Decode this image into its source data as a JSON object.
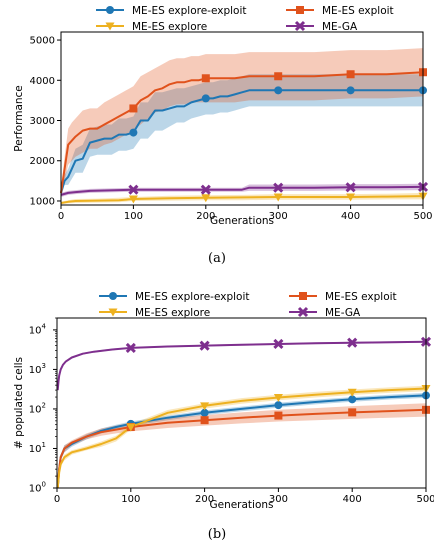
{
  "colors": {
    "explore_exploit": "#1f77b4",
    "exploit": "#e0521c",
    "explore": "#edb120",
    "ga": "#7e2f8e"
  },
  "chart_data": [
    {
      "type": "line",
      "caption": "(a)",
      "xlabel": "Generations",
      "ylabel": "Performance",
      "xlim": [
        0,
        500
      ],
      "ylim": [
        900,
        5200
      ],
      "yscale": "linear",
      "xticks": [
        "0",
        "100",
        "200",
        "300",
        "400",
        "500"
      ],
      "yticks": [
        "1000",
        "2000",
        "3000",
        "4000",
        "5000"
      ],
      "ytick_values": [
        1000,
        2000,
        3000,
        4000,
        5000
      ],
      "grid": false,
      "legend": "top, 2 columns",
      "series": [
        {
          "name": "ME-ES explore-exploit",
          "color_key": "explore_exploit",
          "marker": "circle",
          "x": [
            0,
            5,
            10,
            20,
            30,
            40,
            50,
            60,
            70,
            80,
            90,
            100,
            110,
            120,
            130,
            140,
            150,
            160,
            170,
            180,
            190,
            200,
            210,
            220,
            230,
            240,
            250,
            260,
            270,
            300,
            350,
            400,
            450,
            500
          ],
          "y": [
            1200,
            1500,
            1600,
            2000,
            2050,
            2450,
            2500,
            2550,
            2550,
            2650,
            2650,
            2700,
            3000,
            3000,
            3250,
            3250,
            3300,
            3350,
            3350,
            3450,
            3500,
            3550,
            3550,
            3600,
            3600,
            3650,
            3700,
            3750,
            3750,
            3750,
            3750,
            3750,
            3750,
            3750
          ],
          "lower": [
            1100,
            1400,
            1400,
            1700,
            1700,
            2100,
            2150,
            2150,
            2150,
            2250,
            2250,
            2300,
            2550,
            2550,
            2750,
            2750,
            2850,
            2950,
            2950,
            3050,
            3100,
            3150,
            3150,
            3200,
            3200,
            3250,
            3300,
            3350,
            3350,
            3350,
            3350,
            3350,
            3350,
            3350
          ],
          "upper": [
            1300,
            1650,
            1800,
            2300,
            2400,
            2800,
            2850,
            2900,
            2900,
            3050,
            3050,
            3100,
            3450,
            3450,
            3700,
            3700,
            3750,
            3800,
            3800,
            3850,
            3900,
            3950,
            3950,
            4000,
            4000,
            4050,
            4100,
            4150,
            4150,
            4150,
            4150,
            4150,
            4150,
            4150
          ],
          "markers_x": [
            100,
            200,
            300,
            400,
            500
          ]
        },
        {
          "name": "ME-ES exploit",
          "color_key": "exploit",
          "marker": "square",
          "x": [
            0,
            5,
            10,
            15,
            20,
            30,
            40,
            50,
            60,
            70,
            80,
            90,
            100,
            110,
            120,
            130,
            140,
            150,
            160,
            170,
            180,
            190,
            200,
            220,
            240,
            260,
            280,
            300,
            350,
            400,
            450,
            500
          ],
          "y": [
            1200,
            1800,
            2400,
            2500,
            2600,
            2750,
            2800,
            2800,
            2900,
            3000,
            3100,
            3200,
            3300,
            3500,
            3600,
            3750,
            3800,
            3900,
            3950,
            3950,
            4000,
            4000,
            4050,
            4050,
            4050,
            4100,
            4100,
            4100,
            4100,
            4150,
            4150,
            4200
          ],
          "lower": [
            1100,
            1500,
            1900,
            2000,
            2100,
            2200,
            2300,
            2300,
            2400,
            2450,
            2550,
            2650,
            2750,
            2900,
            3050,
            3200,
            3250,
            3350,
            3400,
            3400,
            3450,
            3450,
            3450,
            3450,
            3450,
            3500,
            3500,
            3500,
            3500,
            3550,
            3550,
            3600
          ],
          "upper": [
            1300,
            2100,
            2800,
            2950,
            3050,
            3250,
            3300,
            3300,
            3450,
            3550,
            3650,
            3750,
            3850,
            4100,
            4200,
            4300,
            4400,
            4500,
            4550,
            4550,
            4600,
            4600,
            4650,
            4650,
            4650,
            4700,
            4700,
            4700,
            4700,
            4750,
            4750,
            4800
          ],
          "markers_x": [
            100,
            200,
            300,
            400,
            500
          ]
        },
        {
          "name": "ME-ES explore",
          "color_key": "explore",
          "marker": "triangle-down",
          "x": [
            0,
            10,
            20,
            50,
            80,
            100,
            150,
            200,
            250,
            300,
            350,
            400,
            450,
            500
          ],
          "y": [
            950,
            980,
            1000,
            1010,
            1020,
            1050,
            1070,
            1080,
            1090,
            1100,
            1100,
            1100,
            1110,
            1120
          ],
          "lower": [
            920,
            940,
            950,
            960,
            970,
            1000,
            1010,
            1020,
            1020,
            1030,
            1030,
            1030,
            1040,
            1040
          ],
          "upper": [
            980,
            1020,
            1050,
            1060,
            1080,
            1100,
            1130,
            1140,
            1150,
            1170,
            1170,
            1170,
            1180,
            1200
          ],
          "markers_x": [
            100,
            200,
            300,
            400,
            500
          ]
        },
        {
          "name": "ME-GA",
          "color_key": "ga",
          "marker": "x",
          "x": [
            0,
            10,
            20,
            40,
            60,
            80,
            100,
            150,
            200,
            250,
            260,
            300,
            350,
            400,
            450,
            500
          ],
          "y": [
            1150,
            1200,
            1220,
            1250,
            1260,
            1270,
            1280,
            1280,
            1280,
            1280,
            1330,
            1330,
            1330,
            1340,
            1340,
            1350
          ],
          "lower": [
            1100,
            1150,
            1170,
            1200,
            1210,
            1220,
            1230,
            1230,
            1230,
            1230,
            1250,
            1250,
            1250,
            1260,
            1260,
            1270
          ],
          "upper": [
            1200,
            1250,
            1270,
            1300,
            1310,
            1320,
            1330,
            1330,
            1330,
            1330,
            1410,
            1410,
            1410,
            1420,
            1420,
            1430
          ],
          "markers_x": [
            100,
            200,
            300,
            400,
            500
          ]
        }
      ]
    },
    {
      "type": "line",
      "caption": "(b)",
      "xlabel": "Generations",
      "ylabel": "# populated cells",
      "xlim": [
        0,
        500
      ],
      "ylim": [
        1,
        20000
      ],
      "yscale": "log",
      "xticks": [
        "0",
        "100",
        "200",
        "300",
        "400",
        "500"
      ],
      "yticks": [
        "10",
        "10",
        "10",
        "10",
        "10"
      ],
      "ytick_exponents": [
        "0",
        "1",
        "2",
        "3",
        "4"
      ],
      "ytick_values": [
        1,
        10,
        100,
        1000,
        10000
      ],
      "grid": false,
      "legend": "top, 2 columns",
      "series": [
        {
          "name": "ME-ES explore-exploit",
          "color_key": "explore_exploit",
          "marker": "circle",
          "x": [
            1,
            3,
            5,
            10,
            20,
            40,
            60,
            80,
            100,
            150,
            200,
            250,
            300,
            350,
            400,
            450,
            500
          ],
          "y": [
            1,
            3,
            6,
            10,
            13,
            20,
            28,
            35,
            42,
            60,
            80,
            100,
            125,
            150,
            175,
            200,
            220
          ],
          "lower": [
            1,
            2.5,
            5,
            8,
            11,
            17,
            24,
            30,
            37,
            52,
            70,
            87,
            108,
            130,
            152,
            173,
            190
          ],
          "upper": [
            1,
            3.5,
            7,
            12,
            15,
            23,
            32,
            40,
            48,
            68,
            92,
            115,
            143,
            172,
            200,
            230,
            255
          ],
          "markers_x": [
            100,
            200,
            300,
            400,
            500
          ]
        },
        {
          "name": "ME-ES exploit",
          "color_key": "exploit",
          "marker": "square",
          "x": [
            1,
            3,
            5,
            10,
            20,
            40,
            60,
            80,
            100,
            150,
            200,
            250,
            300,
            350,
            400,
            450,
            500
          ],
          "y": [
            1,
            3,
            6,
            10,
            14,
            20,
            26,
            30,
            35,
            45,
            52,
            60,
            68,
            75,
            82,
            88,
            95
          ],
          "lower": [
            1,
            2.5,
            5,
            8,
            12,
            17,
            21,
            24,
            27,
            33,
            38,
            43,
            48,
            52,
            56,
            60,
            64
          ],
          "upper": [
            1,
            3.5,
            7,
            12,
            16,
            24,
            32,
            38,
            45,
            60,
            70,
            82,
            95,
            105,
            118,
            128,
            140
          ],
          "markers_x": [
            100,
            200,
            300,
            400,
            500
          ]
        },
        {
          "name": "ME-ES explore",
          "color_key": "explore",
          "marker": "triangle-down",
          "x": [
            1,
            3,
            5,
            10,
            20,
            40,
            60,
            80,
            100,
            150,
            200,
            250,
            300,
            350,
            400,
            450,
            500
          ],
          "y": [
            1,
            2.5,
            4,
            6,
            8,
            10,
            13,
            18,
            35,
            80,
            120,
            160,
            195,
            230,
            265,
            300,
            330
          ],
          "lower": [
            1,
            2,
            3.5,
            5,
            7,
            9,
            11,
            15,
            30,
            68,
            102,
            136,
            166,
            195,
            225,
            255,
            280
          ],
          "upper": [
            1,
            3,
            4.5,
            7,
            9,
            11.5,
            15,
            21,
            41,
            94,
            140,
            188,
            228,
            270,
            310,
            350,
            385
          ],
          "markers_x": [
            100,
            200,
            300,
            400,
            500
          ]
        },
        {
          "name": "ME-GA",
          "color_key": "ga",
          "marker": "x",
          "x": [
            1,
            2,
            3,
            5,
            8,
            12,
            20,
            35,
            50,
            75,
            100,
            150,
            200,
            250,
            300,
            350,
            400,
            450,
            500
          ],
          "y": [
            300,
            500,
            700,
            1000,
            1300,
            1600,
            2000,
            2500,
            2800,
            3200,
            3500,
            3800,
            4000,
            4200,
            4400,
            4600,
            4750,
            4850,
            5000
          ],
          "lower": [
            280,
            470,
            660,
            950,
            1230,
            1520,
            1900,
            2380,
            2660,
            3040,
            3330,
            3610,
            3800,
            3990,
            4180,
            4370,
            4510,
            4610,
            4750
          ],
          "upper": [
            320,
            530,
            740,
            1050,
            1370,
            1680,
            2100,
            2620,
            2940,
            3360,
            3670,
            3990,
            4200,
            4410,
            4620,
            4830,
            4990,
            5090,
            5250
          ],
          "markers_x": [
            100,
            200,
            300,
            400,
            500
          ]
        }
      ]
    }
  ]
}
